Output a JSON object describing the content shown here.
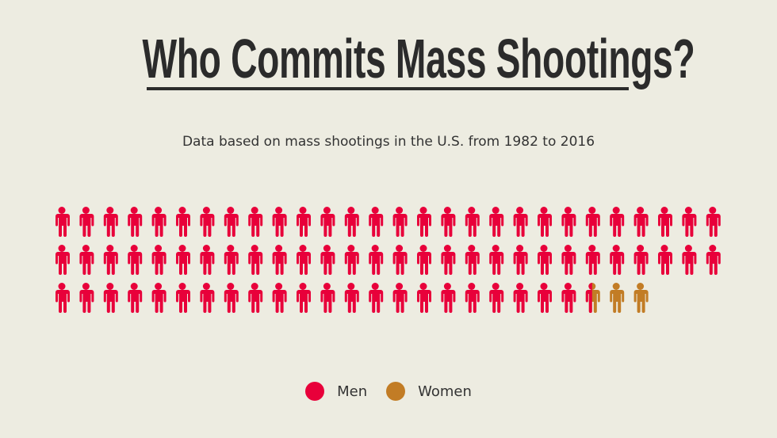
{
  "title": "Who Commits Mass Shootings?",
  "subtitle": "Data based on mass shootings in the U.S. from 1982 to 2016",
  "colors": {
    "background": "#edece1",
    "men": "#e8003a",
    "women": "#c27c25"
  },
  "chart_data": {
    "type": "pictograph",
    "icon": "person-icon",
    "icons_per_row": 28,
    "series": [
      {
        "name": "Men",
        "value": 78.5,
        "color": "#e8003a"
      },
      {
        "name": "Women",
        "value": 2.5,
        "color": "#c27c25"
      }
    ],
    "legend": [
      "Men",
      "Women"
    ],
    "legend_position": "bottom"
  }
}
